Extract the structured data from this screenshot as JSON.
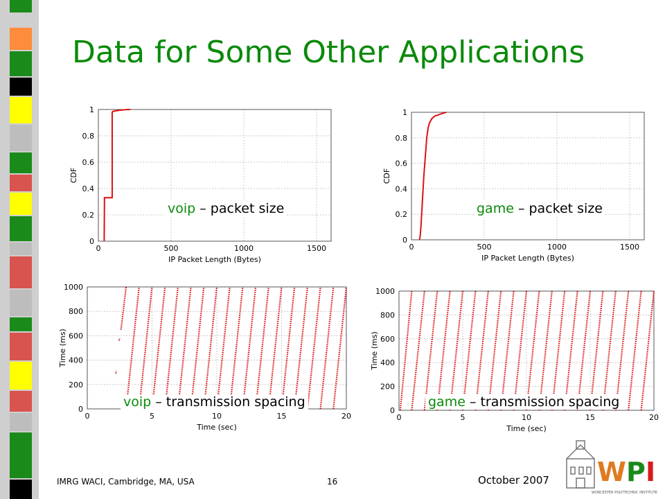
{
  "title": "Data for Some Other Applications",
  "footer": {
    "left": "IMRG WACI, Cambridge, MA, USA",
    "page": "16",
    "date": "October 2007"
  },
  "logo": {
    "text": "WPI",
    "subtitle": "WORCESTER POLYTECHNIC INSTITUTE"
  },
  "colors": {
    "title": "#0a8a0a",
    "data": "#dd1111",
    "app_label": "#0a8a0a"
  },
  "chart_data": [
    {
      "type": "line",
      "caption": {
        "app": "voip",
        "rest": " – packet size"
      },
      "xlabel": "IP Packet Length (Bytes)",
      "ylabel": "CDF",
      "xlim": [
        0,
        1600
      ],
      "ylim": [
        0,
        1
      ],
      "xticks": [
        0,
        500,
        1000,
        1500
      ],
      "yticks": [
        0,
        0.2,
        0.4,
        0.6,
        0.8,
        1
      ],
      "ytick_labels": [
        "0",
        "0.2",
        "0.4",
        "0.6",
        "0.8",
        "1"
      ],
      "grid": true,
      "series": [
        {
          "x": [
            40,
            42,
            42,
            50,
            95,
            95,
            100,
            120,
            150,
            200,
            220
          ],
          "y": [
            0,
            0.33,
            0.33,
            0.33,
            0.33,
            0.98,
            0.985,
            0.99,
            0.995,
            1.0,
            1.0
          ]
        }
      ]
    },
    {
      "type": "line",
      "caption": {
        "app": "game",
        "rest": " – packet size"
      },
      "xlabel": "IP Packet Length (Bytes)",
      "ylabel": "CDF",
      "xlim": [
        0,
        1600
      ],
      "ylim": [
        0,
        1
      ],
      "xticks": [
        0,
        500,
        1000,
        1500
      ],
      "yticks": [
        0,
        0.2,
        0.4,
        0.6,
        0.8,
        1
      ],
      "ytick_labels": [
        "0",
        "0.2",
        "0.4",
        "0.6",
        "0.8",
        "1"
      ],
      "grid": true,
      "series": [
        {
          "x": [
            55,
            60,
            65,
            75,
            85,
            95,
            105,
            115,
            125,
            140,
            160,
            185,
            210,
            240
          ],
          "y": [
            0,
            0.03,
            0.1,
            0.3,
            0.5,
            0.65,
            0.8,
            0.88,
            0.92,
            0.95,
            0.97,
            0.98,
            0.99,
            1.0
          ]
        }
      ]
    },
    {
      "type": "scatter",
      "caption": {
        "app": "voip",
        "rest": " – transmission spacing"
      },
      "xlabel": "Time (sec)",
      "ylabel": "Time (ms)",
      "xlim": [
        0,
        20
      ],
      "ylim": [
        0,
        1000
      ],
      "xticks": [
        0,
        5,
        10,
        15,
        20
      ],
      "yticks": [
        0,
        200,
        400,
        600,
        800,
        1000
      ],
      "grid": true,
      "period_ms": 1000,
      "segments": [
        {
          "x0": 2.2,
          "x1": 2.25,
          "y0": 290,
          "y1": 310
        },
        {
          "x0": 2.45,
          "x1": 2.5,
          "y0": 560,
          "y1": 580
        },
        {
          "x0": 2.6,
          "x1": 3.0,
          "y0": 650,
          "y1": 1000
        },
        {
          "x0": 3.0,
          "x1": 4.0,
          "y0": 0,
          "y1": 1000
        },
        {
          "x0": 4.0,
          "x1": 5.0,
          "y0": 0,
          "y1": 1000
        },
        {
          "x0": 5.0,
          "x1": 6.0,
          "y0": 0,
          "y1": 1000
        },
        {
          "x0": 6.0,
          "x1": 7.0,
          "y0": 0,
          "y1": 1000
        },
        {
          "x0": 7.0,
          "x1": 8.0,
          "y0": 0,
          "y1": 1000
        },
        {
          "x0": 8.0,
          "x1": 9.0,
          "y0": 0,
          "y1": 1000
        },
        {
          "x0": 9.0,
          "x1": 10.0,
          "y0": 0,
          "y1": 1000
        },
        {
          "x0": 10.0,
          "x1": 11.0,
          "y0": 0,
          "y1": 1000
        },
        {
          "x0": 11.0,
          "x1": 12.0,
          "y0": 0,
          "y1": 1000
        },
        {
          "x0": 12.0,
          "x1": 13.0,
          "y0": 0,
          "y1": 1000
        },
        {
          "x0": 13.0,
          "x1": 14.0,
          "y0": 0,
          "y1": 1000
        },
        {
          "x0": 14.0,
          "x1": 15.0,
          "y0": 0,
          "y1": 1000
        },
        {
          "x0": 15.0,
          "x1": 16.0,
          "y0": 0,
          "y1": 1000
        },
        {
          "x0": 16.0,
          "x1": 17.0,
          "y0": 0,
          "y1": 1000
        },
        {
          "x0": 17.0,
          "x1": 18.0,
          "y0": 0,
          "y1": 1000
        },
        {
          "x0": 18.0,
          "x1": 19.0,
          "y0": 0,
          "y1": 1000
        },
        {
          "x0": 19.0,
          "x1": 20.0,
          "y0": 0,
          "y1": 1000
        }
      ]
    },
    {
      "type": "scatter",
      "caption": {
        "app": "game",
        "rest": " – transmission spacing"
      },
      "xlabel": "Time (sec)",
      "ylabel": "Time (ms)",
      "xlim": [
        0,
        20
      ],
      "ylim": [
        0,
        1000
      ],
      "xticks": [
        0,
        5,
        10,
        15,
        20
      ],
      "yticks": [
        0,
        200,
        400,
        600,
        800,
        1000
      ],
      "grid": true,
      "period_ms": 1000,
      "segments": [
        {
          "x0": 0.1,
          "x1": 1.0,
          "y0": 0,
          "y1": 1000
        },
        {
          "x0": 1.0,
          "x1": 2.0,
          "y0": 0,
          "y1": 1000
        },
        {
          "x0": 2.0,
          "x1": 3.0,
          "y0": 0,
          "y1": 1000
        },
        {
          "x0": 3.0,
          "x1": 4.0,
          "y0": 0,
          "y1": 1000
        },
        {
          "x0": 4.0,
          "x1": 5.0,
          "y0": 0,
          "y1": 1000
        },
        {
          "x0": 5.0,
          "x1": 6.0,
          "y0": 0,
          "y1": 1000
        },
        {
          "x0": 6.0,
          "x1": 7.0,
          "y0": 0,
          "y1": 1000
        },
        {
          "x0": 7.0,
          "x1": 8.0,
          "y0": 0,
          "y1": 1000
        },
        {
          "x0": 8.0,
          "x1": 9.0,
          "y0": 0,
          "y1": 1000
        },
        {
          "x0": 9.0,
          "x1": 10.0,
          "y0": 0,
          "y1": 1000
        },
        {
          "x0": 10.0,
          "x1": 11.0,
          "y0": 0,
          "y1": 1000
        },
        {
          "x0": 11.0,
          "x1": 12.0,
          "y0": 0,
          "y1": 1000
        },
        {
          "x0": 12.0,
          "x1": 13.0,
          "y0": 0,
          "y1": 1000
        },
        {
          "x0": 13.0,
          "x1": 14.0,
          "y0": 0,
          "y1": 1000
        },
        {
          "x0": 14.0,
          "x1": 15.0,
          "y0": 0,
          "y1": 1000
        },
        {
          "x0": 15.0,
          "x1": 16.0,
          "y0": 0,
          "y1": 1000
        },
        {
          "x0": 16.0,
          "x1": 17.0,
          "y0": 0,
          "y1": 1000
        },
        {
          "x0": 17.0,
          "x1": 18.0,
          "y0": 0,
          "y1": 1000
        },
        {
          "x0": 18.0,
          "x1": 19.0,
          "y0": 0,
          "y1": 1000
        },
        {
          "x0": 19.0,
          "x1": 20.0,
          "y0": 0,
          "y1": 1000
        }
      ]
    }
  ]
}
